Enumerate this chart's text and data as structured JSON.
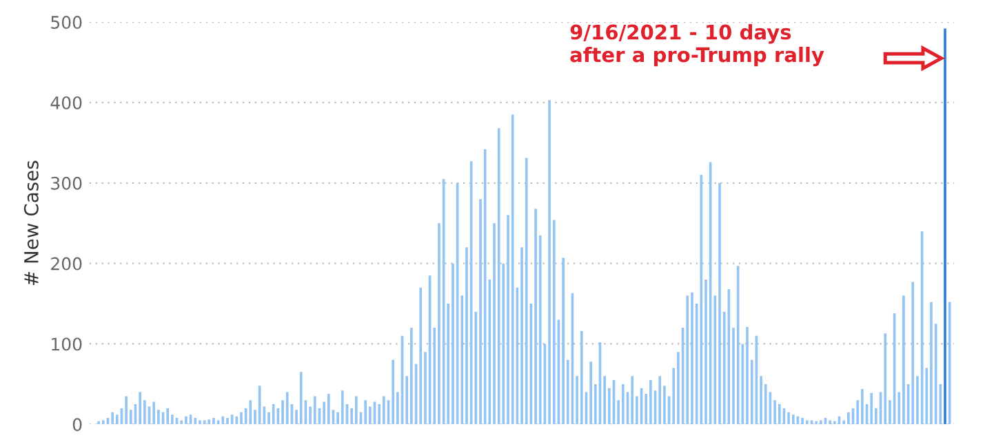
{
  "chart_data": {
    "type": "bar",
    "ylabel": "# New Cases",
    "annotations": [
      "9/16/2021 - 10 days\nafter a pro-Trump rally"
    ],
    "categories": [
      null,
      null,
      null,
      null,
      null,
      null,
      null,
      null,
      null,
      null,
      null,
      null,
      null,
      null,
      null,
      null,
      null,
      null,
      null,
      null,
      null,
      null,
      null,
      null,
      null,
      null,
      null,
      null,
      null,
      null,
      null,
      null,
      null,
      null,
      null,
      null,
      null,
      null,
      null,
      null,
      null,
      null,
      null,
      null,
      null,
      null,
      null,
      null,
      null,
      null,
      null,
      null,
      null,
      null,
      null,
      null,
      null,
      null,
      null,
      null,
      null,
      null,
      null,
      null,
      null,
      null,
      null,
      null,
      null,
      null,
      null,
      null,
      null,
      null,
      null,
      null,
      null,
      null,
      null,
      null,
      null,
      null,
      null,
      null,
      null,
      null,
      null,
      null,
      null,
      null,
      null,
      null,
      null,
      null,
      null,
      null,
      null,
      null,
      null,
      null,
      null,
      null,
      null,
      null,
      null,
      null,
      null,
      null,
      null,
      null,
      null,
      null,
      null,
      null,
      null,
      null,
      null,
      null,
      null,
      null,
      null,
      null,
      null,
      null,
      null,
      null,
      null,
      null,
      null,
      null,
      null,
      null,
      null,
      null,
      null,
      null,
      null,
      null,
      null,
      null,
      null,
      null,
      null,
      null,
      null,
      null,
      null,
      null,
      null,
      null,
      null,
      null,
      null,
      null,
      null,
      null,
      null,
      null,
      null,
      null,
      null,
      null,
      null,
      null,
      null,
      null,
      null,
      null,
      null,
      null,
      null,
      null,
      null,
      null,
      null,
      null,
      null,
      null,
      null,
      null,
      null,
      null,
      null,
      null,
      null,
      null,
      null
    ],
    "values": [
      0,
      4,
      5,
      8,
      15,
      12,
      20,
      35,
      18,
      25,
      40,
      30,
      22,
      28,
      18,
      15,
      20,
      12,
      8,
      5,
      10,
      12,
      8,
      5,
      5,
      6,
      8,
      5,
      10,
      8,
      12,
      10,
      15,
      20,
      30,
      18,
      48,
      22,
      15,
      25,
      20,
      30,
      40,
      25,
      18,
      65,
      30,
      22,
      35,
      20,
      28,
      38,
      18,
      15,
      42,
      25,
      20,
      35,
      15,
      30,
      22,
      28,
      25,
      35,
      30,
      80,
      40,
      110,
      60,
      120,
      75,
      170,
      90,
      185,
      120,
      250,
      305,
      150,
      200,
      300,
      160,
      220,
      327,
      140,
      280,
      342,
      180,
      250,
      368,
      200,
      260,
      385,
      170,
      220,
      331,
      150,
      268,
      235,
      100,
      403,
      254,
      130,
      207,
      80,
      163,
      60,
      116,
      40,
      78,
      50,
      102,
      60,
      45,
      55,
      30,
      50,
      40,
      60,
      35,
      45,
      38,
      55,
      42,
      60,
      48,
      35,
      70,
      90,
      120,
      160,
      164,
      150,
      310,
      180,
      326,
      160,
      300,
      140,
      168,
      120,
      197,
      100,
      121,
      80,
      110,
      60,
      50,
      40,
      30,
      25,
      20,
      15,
      12,
      10,
      8,
      5,
      5,
      4,
      5,
      8,
      5,
      4,
      10,
      5,
      15,
      20,
      30,
      44,
      25,
      39,
      20,
      40,
      113,
      30,
      138,
      40,
      160,
      50,
      177,
      60,
      240,
      70,
      152,
      125,
      50,
      492,
      152
    ],
    "colors": [
      "#94c4f2",
      "#94c4f2",
      "#94c4f2",
      "#94c4f2",
      "#94c4f2",
      "#94c4f2",
      "#94c4f2",
      "#94c4f2",
      "#94c4f2",
      "#94c4f2",
      "#94c4f2",
      "#94c4f2",
      "#94c4f2",
      "#94c4f2",
      "#94c4f2",
      "#94c4f2",
      "#94c4f2",
      "#94c4f2",
      "#94c4f2",
      "#94c4f2",
      "#94c4f2",
      "#94c4f2",
      "#94c4f2",
      "#94c4f2",
      "#94c4f2",
      "#94c4f2",
      "#94c4f2",
      "#94c4f2",
      "#94c4f2",
      "#94c4f2",
      "#94c4f2",
      "#94c4f2",
      "#94c4f2",
      "#94c4f2",
      "#94c4f2",
      "#94c4f2",
      "#94c4f2",
      "#94c4f2",
      "#94c4f2",
      "#94c4f2",
      "#94c4f2",
      "#94c4f2",
      "#94c4f2",
      "#94c4f2",
      "#94c4f2",
      "#94c4f2",
      "#94c4f2",
      "#94c4f2",
      "#94c4f2",
      "#94c4f2",
      "#94c4f2",
      "#94c4f2",
      "#94c4f2",
      "#94c4f2",
      "#94c4f2",
      "#94c4f2",
      "#94c4f2",
      "#94c4f2",
      "#94c4f2",
      "#94c4f2",
      "#94c4f2",
      "#94c4f2",
      "#94c4f2",
      "#94c4f2",
      "#94c4f2",
      "#94c4f2",
      "#94c4f2",
      "#94c4f2",
      "#94c4f2",
      "#94c4f2",
      "#94c4f2",
      "#94c4f2",
      "#94c4f2",
      "#94c4f2",
      "#94c4f2",
      "#94c4f2",
      "#94c4f2",
      "#94c4f2",
      "#94c4f2",
      "#94c4f2",
      "#94c4f2",
      "#94c4f2",
      "#94c4f2",
      "#94c4f2",
      "#94c4f2",
      "#94c4f2",
      "#94c4f2",
      "#94c4f2",
      "#94c4f2",
      "#94c4f2",
      "#94c4f2",
      "#94c4f2",
      "#94c4f2",
      "#94c4f2",
      "#94c4f2",
      "#94c4f2",
      "#94c4f2",
      "#94c4f2",
      "#94c4f2",
      "#94c4f2",
      "#94c4f2",
      "#94c4f2",
      "#94c4f2",
      "#94c4f2",
      "#94c4f2",
      "#94c4f2",
      "#94c4f2",
      "#94c4f2",
      "#94c4f2",
      "#94c4f2",
      "#94c4f2",
      "#94c4f2",
      "#94c4f2",
      "#94c4f2",
      "#94c4f2",
      "#94c4f2",
      "#94c4f2",
      "#94c4f2",
      "#94c4f2",
      "#94c4f2",
      "#94c4f2",
      "#94c4f2",
      "#94c4f2",
      "#94c4f2",
      "#94c4f2",
      "#94c4f2",
      "#94c4f2",
      "#94c4f2",
      "#94c4f2",
      "#94c4f2",
      "#94c4f2",
      "#94c4f2",
      "#94c4f2",
      "#94c4f2",
      "#94c4f2",
      "#94c4f2",
      "#94c4f2",
      "#94c4f2",
      "#94c4f2",
      "#94c4f2",
      "#94c4f2",
      "#94c4f2",
      "#94c4f2",
      "#94c4f2",
      "#94c4f2",
      "#94c4f2",
      "#94c4f2",
      "#94c4f2",
      "#94c4f2",
      "#94c4f2",
      "#94c4f2",
      "#94c4f2",
      "#94c4f2",
      "#94c4f2",
      "#94c4f2",
      "#94c4f2",
      "#94c4f2",
      "#94c4f2",
      "#94c4f2",
      "#94c4f2",
      "#94c4f2",
      "#94c4f2",
      "#94c4f2",
      "#94c4f2",
      "#94c4f2",
      "#94c4f2",
      "#94c4f2",
      "#94c4f2",
      "#94c4f2",
      "#94c4f2",
      "#94c4f2",
      "#94c4f2",
      "#94c4f2",
      "#94c4f2",
      "#94c4f2",
      "#94c4f2",
      "#94c4f2",
      "#94c4f2",
      "#94c4f2",
      "#94c4f2",
      "#94c4f2",
      "#94c4f2",
      "#94c4f2",
      "#94c4f2",
      "#94c4f2",
      "#2f7ed8",
      "#94c4f2"
    ],
    "ylim": [
      0,
      500
    ],
    "yticks": [
      0,
      100,
      200,
      300,
      400,
      500
    ],
    "grid": "y",
    "tick_labels": "y"
  }
}
